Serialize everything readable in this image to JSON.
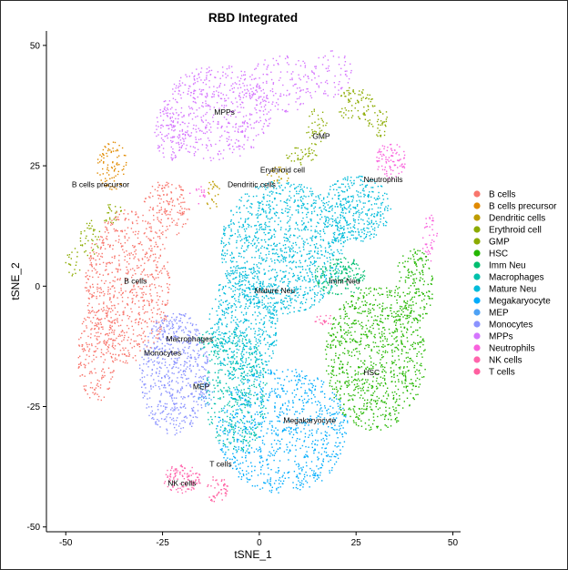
{
  "chart_data": {
    "type": "scatter",
    "title": "RBD Integrated",
    "xlabel": "tSNE_1",
    "ylabel": "tSNE_2",
    "xlim": [
      -55,
      52
    ],
    "ylim": [
      -51,
      53
    ],
    "xticks": [
      -50,
      -25,
      0,
      25,
      50
    ],
    "yticks": [
      -50,
      -25,
      0,
      25,
      50
    ],
    "grid": false,
    "legend_position": "right",
    "clusters": [
      {
        "name": "B cells",
        "color": "#F8766D"
      },
      {
        "name": "B cells precursor",
        "color": "#E18A00"
      },
      {
        "name": "Dendritic cells",
        "color": "#BE9C00"
      },
      {
        "name": "Erythroid cell",
        "color": "#8CAB00"
      },
      {
        "name": "GMP",
        "color": "#8CAB00"
      },
      {
        "name": "HSC",
        "color": "#24B700"
      },
      {
        "name": "Imm Neu",
        "color": "#00BE70"
      },
      {
        "name": "Macrophages",
        "color": "#00C1AB"
      },
      {
        "name": "Mature Neu",
        "color": "#00BBDA"
      },
      {
        "name": "Megakaryocyte",
        "color": "#00ACFC"
      },
      {
        "name": "MEP",
        "color": "#4EA2F5"
      },
      {
        "name": "Monocytes",
        "color": "#8B93FF"
      },
      {
        "name": "MPPs",
        "color": "#D575FE"
      },
      {
        "name": "Neutrophils",
        "color": "#F962DD"
      },
      {
        "name": "NK cells",
        "color": "#FF65AC"
      },
      {
        "name": "T cells",
        "color": "#FF5FA0"
      }
    ],
    "annotations": [
      {
        "text": "MPPs",
        "x": -9,
        "y": 36
      },
      {
        "text": "GMP",
        "x": 16,
        "y": 31
      },
      {
        "text": "Erythroid cell",
        "x": 6,
        "y": 24
      },
      {
        "text": "Neutrophils",
        "x": 32,
        "y": 22
      },
      {
        "text": "B cells precursor",
        "x": -41,
        "y": 21
      },
      {
        "text": "Dendritic cells",
        "x": -2,
        "y": 21
      },
      {
        "text": "B cells",
        "x": -32,
        "y": 1
      },
      {
        "text": "Imm Neu",
        "x": 22,
        "y": 1
      },
      {
        "text": "Mature Neu",
        "x": 4,
        "y": -1
      },
      {
        "text": "Macrophages",
        "x": -18,
        "y": -11
      },
      {
        "text": "Monocytes",
        "x": -25,
        "y": -14
      },
      {
        "text": "HSC",
        "x": 29,
        "y": -18
      },
      {
        "text": "MEP",
        "x": -15,
        "y": -21
      },
      {
        "text": "Megakaryocyte",
        "x": 13,
        "y": -28
      },
      {
        "text": "T cells",
        "x": -10,
        "y": -37
      },
      {
        "text": "NK cells",
        "x": -20,
        "y": -41
      }
    ],
    "regions": [
      {
        "cluster": "MPPs",
        "cx": -11,
        "cy": 36,
        "rx": 14,
        "ry": 10,
        "n": 520
      },
      {
        "cluster": "MPPs",
        "cx": 6,
        "cy": 42,
        "rx": 9,
        "ry": 6,
        "n": 140
      },
      {
        "cluster": "MPPs",
        "cx": -23,
        "cy": 32,
        "rx": 4,
        "ry": 6,
        "n": 90
      },
      {
        "cluster": "MPPs",
        "cx": 19,
        "cy": 44,
        "rx": 5,
        "ry": 5,
        "n": 60
      },
      {
        "cluster": "B cells precursor",
        "cx": -38,
        "cy": 25,
        "rx": 4,
        "ry": 5,
        "n": 90
      },
      {
        "cluster": "GMP",
        "cx": -44,
        "cy": 10,
        "rx": 3,
        "ry": 4,
        "n": 40
      },
      {
        "cluster": "GMP",
        "cx": -48,
        "cy": 5,
        "rx": 2,
        "ry": 3,
        "n": 20
      },
      {
        "cluster": "GMP",
        "cx": -38,
        "cy": 15,
        "rx": 3,
        "ry": 2,
        "n": 25
      },
      {
        "cluster": "GMP",
        "cx": 25,
        "cy": 38,
        "rx": 5,
        "ry": 4,
        "n": 80
      },
      {
        "cluster": "GMP",
        "cx": 15,
        "cy": 33,
        "rx": 3,
        "ry": 4,
        "n": 40
      },
      {
        "cluster": "Erythroid cell",
        "cx": 31,
        "cy": 34,
        "rx": 3,
        "ry": 3,
        "n": 40
      },
      {
        "cluster": "Erythroid cell",
        "cx": 11,
        "cy": 27,
        "rx": 4,
        "ry": 2,
        "n": 40
      },
      {
        "cluster": "Dendritic cells",
        "cx": -12,
        "cy": 19,
        "rx": 2,
        "ry": 3,
        "n": 25
      },
      {
        "cluster": "Dendritic cells",
        "cx": 5,
        "cy": 23,
        "rx": 3,
        "ry": 2,
        "n": 25
      },
      {
        "cluster": "Neutrophils",
        "cx": 34,
        "cy": 26,
        "rx": 4,
        "ry": 4,
        "n": 90
      },
      {
        "cluster": "Neutrophils",
        "cx": 44,
        "cy": 10,
        "rx": 2,
        "ry": 5,
        "n": 40
      },
      {
        "cluster": "Neutrophils",
        "cx": -16,
        "cy": 19,
        "rx": 2,
        "ry": 2,
        "n": 15
      },
      {
        "cluster": "B cells",
        "cx": -34,
        "cy": 0,
        "rx": 11,
        "ry": 16,
        "n": 720
      },
      {
        "cluster": "B cells",
        "cx": -24,
        "cy": 16,
        "rx": 6,
        "ry": 6,
        "n": 150
      },
      {
        "cluster": "B cells",
        "cx": -42,
        "cy": -14,
        "rx": 5,
        "ry": 10,
        "n": 180
      },
      {
        "cluster": "Monocytes",
        "cx": -22,
        "cy": -18,
        "rx": 9,
        "ry": 13,
        "n": 620
      },
      {
        "cluster": "Macrophages",
        "cx": -13,
        "cy": -12,
        "rx": 3,
        "ry": 3,
        "n": 40
      },
      {
        "cluster": "MEP",
        "cx": -14,
        "cy": -22,
        "rx": 2,
        "ry": 3,
        "n": 35
      },
      {
        "cluster": "Mature Neu",
        "cx": 6,
        "cy": 8,
        "rx": 16,
        "ry": 14,
        "n": 1150
      },
      {
        "cluster": "Mature Neu",
        "cx": 25,
        "cy": 16,
        "rx": 9,
        "ry": 7,
        "n": 380
      },
      {
        "cluster": "Mature Neu",
        "cx": -4,
        "cy": -8,
        "rx": 9,
        "ry": 12,
        "n": 550
      },
      {
        "cluster": "Megakaryocyte",
        "cx": 6,
        "cy": -30,
        "rx": 17,
        "ry": 13,
        "n": 880
      },
      {
        "cluster": "Macrophages",
        "cx": -6,
        "cy": -22,
        "rx": 8,
        "ry": 13,
        "n": 400
      },
      {
        "cluster": "Imm Neu",
        "cx": 21,
        "cy": 2,
        "rx": 7,
        "ry": 4,
        "n": 170
      },
      {
        "cluster": "HSC",
        "cx": 30,
        "cy": -15,
        "rx": 13,
        "ry": 15,
        "n": 920
      },
      {
        "cluster": "HSC",
        "cx": 40,
        "cy": 0,
        "rx": 5,
        "ry": 8,
        "n": 180
      },
      {
        "cluster": "T cells",
        "cx": -11,
        "cy": -42,
        "rx": 3,
        "ry": 3,
        "n": 45
      },
      {
        "cluster": "NK cells",
        "cx": -20,
        "cy": -40,
        "rx": 5,
        "ry": 3,
        "n": 110
      },
      {
        "cluster": "NK cells",
        "cx": 17,
        "cy": -7,
        "rx": 3,
        "ry": 1,
        "n": 20
      }
    ]
  }
}
